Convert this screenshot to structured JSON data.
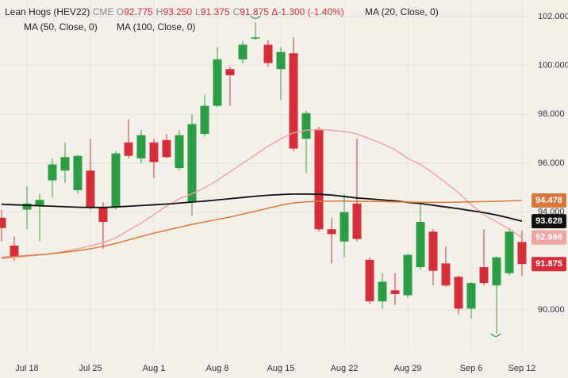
{
  "chart_data": {
    "type": "candlestick",
    "symbol": "Lean Hogs (HEV22)",
    "exchange": "CME",
    "ohlc_header": [
      {
        "key": "O",
        "value": "92.775"
      },
      {
        "key": "H",
        "value": "93.250"
      },
      {
        "key": "L",
        "value": "91.375"
      },
      {
        "key": "C",
        "value": "91.875"
      }
    ],
    "change": "Δ-1.300 (-1.40%)",
    "categories": [
      null,
      null,
      "Jul 18",
      null,
      null,
      null,
      null,
      "Jul 25",
      null,
      null,
      null,
      null,
      "Aug 1",
      null,
      null,
      null,
      null,
      "Aug 8",
      null,
      null,
      null,
      null,
      "Aug 15",
      null,
      null,
      null,
      null,
      "Aug 22",
      null,
      null,
      null,
      null,
      "Aug 29",
      null,
      null,
      null,
      null,
      "Sep 6",
      null,
      null,
      null,
      "Sep 12"
    ],
    "open": [
      93.77,
      92.63,
      94.1,
      94.25,
      95.3,
      95.7,
      94.9,
      95.7,
      94.2,
      94.2,
      96.85,
      96.2,
      96.85,
      96.95,
      95.8,
      94.4,
      97.2,
      98.35,
      99.85,
      100.25,
      101.1,
      100.85,
      99.85,
      100.5,
      97.0,
      97.4,
      93.3,
      92.8,
      94.35,
      92.05,
      90.35,
      90.8,
      90.6,
      91.75,
      93.2,
      91.9,
      91.35,
      90.05,
      91.75,
      91.0,
      91.5,
      92.775
    ],
    "high": [
      94.1,
      93.0,
      95.05,
      94.75,
      96.2,
      96.85,
      96.35,
      97.0,
      94.4,
      96.5,
      97.8,
      97.35,
      97.0,
      97.2,
      97.35,
      98.0,
      98.8,
      100.75,
      99.95,
      101.0,
      101.75,
      101.05,
      100.75,
      101.15,
      98.15,
      97.5,
      93.75,
      94.75,
      97.0,
      92.15,
      91.5,
      91.5,
      92.3,
      94.4,
      93.3,
      92.6,
      91.4,
      91.15,
      93.3,
      92.2,
      93.35,
      93.25
    ],
    "low": [
      92.8,
      92.0,
      93.3,
      92.8,
      94.6,
      95.2,
      94.75,
      94.1,
      92.5,
      94.1,
      96.2,
      96.0,
      95.4,
      96.2,
      95.7,
      93.85,
      97.1,
      98.3,
      98.35,
      100.1,
      101.05,
      99.95,
      98.6,
      96.5,
      95.6,
      93.2,
      91.9,
      92.15,
      92.8,
      90.25,
      90.05,
      90.2,
      90.5,
      91.65,
      91.0,
      90.95,
      89.8,
      89.65,
      91.0,
      89.05,
      91.4,
      91.375
    ],
    "close": [
      93.35,
      92.15,
      94.35,
      94.5,
      95.95,
      96.25,
      96.3,
      94.2,
      93.6,
      96.4,
      96.3,
      97.15,
      96.05,
      96.25,
      97.15,
      97.6,
      98.35,
      100.25,
      99.6,
      100.85,
      101.15,
      100.1,
      100.55,
      96.6,
      98.05,
      93.3,
      93.1,
      94.0,
      92.9,
      90.35,
      91.15,
      90.65,
      92.25,
      93.6,
      91.6,
      91.0,
      90.05,
      91.1,
      91.1,
      92.15,
      93.2,
      91.875
    ],
    "up_color": "#2a9d45",
    "down_color": "#d42e3a",
    "series": [
      {
        "name": "MA (20, Close, 0)",
        "color": "#f0a3a0",
        "price_label": "92.966",
        "values": [
          92.1,
          92.15,
          92.2,
          92.25,
          92.3,
          92.4,
          92.5,
          92.62,
          92.75,
          92.95,
          93.25,
          93.55,
          93.9,
          94.25,
          94.55,
          94.75,
          95.0,
          95.3,
          95.65,
          96.0,
          96.35,
          96.7,
          97.0,
          97.25,
          97.35,
          97.38,
          97.35,
          97.3,
          97.2,
          97.0,
          96.8,
          96.55,
          96.2,
          95.95,
          95.6,
          95.2,
          94.8,
          94.3,
          93.9,
          93.6,
          93.3,
          92.966
        ]
      },
      {
        "name": "MA (50, Close, 0)",
        "color": "#111111",
        "price_label": "93.628",
        "values": [
          94.32,
          94.3,
          94.28,
          94.26,
          94.24,
          94.22,
          94.2,
          94.19,
          94.19,
          94.21,
          94.24,
          94.27,
          94.3,
          94.33,
          94.37,
          94.41,
          94.45,
          94.5,
          94.55,
          94.6,
          94.65,
          94.69,
          94.72,
          94.74,
          94.74,
          94.73,
          94.7,
          94.64,
          94.58,
          94.54,
          94.5,
          94.46,
          94.4,
          94.35,
          94.28,
          94.21,
          94.14,
          94.06,
          93.98,
          93.88,
          93.76,
          93.628
        ]
      },
      {
        "name": "MA (100, Close, 0)",
        "color": "#d9773a",
        "price_label": "94.478",
        "values": [
          92.15,
          92.18,
          92.22,
          92.26,
          92.3,
          92.36,
          92.42,
          92.5,
          92.6,
          92.72,
          92.86,
          93.0,
          93.14,
          93.26,
          93.38,
          93.5,
          93.6,
          93.7,
          93.8,
          93.92,
          94.04,
          94.16,
          94.28,
          94.38,
          94.42,
          94.44,
          94.45,
          94.45,
          94.44,
          94.44,
          94.43,
          94.42,
          94.41,
          94.4,
          94.4,
          94.4,
          94.41,
          94.42,
          94.43,
          94.44,
          94.46,
          94.478
        ]
      }
    ],
    "close_label": "91.875",
    "ylim": [
      88.25,
      102.68
    ],
    "yticks": [
      {
        "value": 90,
        "label": "90.000"
      },
      {
        "value": 94,
        "label": "94.000"
      },
      {
        "value": 96,
        "label": "96.000"
      },
      {
        "value": 98,
        "label": "98.000"
      },
      {
        "value": 100,
        "label": "100.000"
      },
      {
        "value": 102,
        "label": "102.000"
      }
    ],
    "grid": true
  }
}
